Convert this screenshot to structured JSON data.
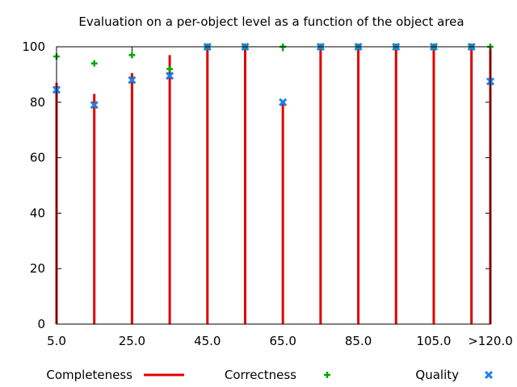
{
  "chart_data": {
    "type": "bar",
    "title": "Evaluation on a per-object level as a function of the object area",
    "xlabel": "",
    "ylabel": "",
    "x": [
      5,
      15,
      25,
      35,
      45,
      55,
      65,
      75,
      85,
      95,
      105,
      115,
      120
    ],
    "xlim": [
      5,
      120
    ],
    "ylim": [
      0,
      100
    ],
    "x_tick_labels": [
      "5.0",
      "25.0",
      "45.0",
      "65.0",
      "85.0",
      "105.0",
      ">120.0"
    ],
    "y_tick_labels": [
      "0",
      "20",
      "40",
      "60",
      "80",
      "100"
    ],
    "grid": false,
    "legend_position": "bottom",
    "series": [
      {
        "name": "Completeness",
        "style": "impulses",
        "color": "#e00000",
        "values": [
          87,
          83,
          90.5,
          97,
          100,
          100,
          80,
          100,
          100,
          100,
          100,
          100,
          100
        ]
      },
      {
        "name": "Correctness",
        "style": "points",
        "marker": "plus",
        "color": "#00aa00",
        "values": [
          96.5,
          94,
          97,
          92,
          100,
          100,
          100,
          100,
          100,
          100,
          100,
          100,
          100
        ]
      },
      {
        "name": "Quality",
        "style": "points",
        "marker": "x",
        "color": "#1e7fe6",
        "values": [
          84.5,
          79,
          88,
          89.5,
          100,
          100,
          80,
          100,
          100,
          100,
          100,
          100,
          87.5
        ]
      }
    ]
  }
}
